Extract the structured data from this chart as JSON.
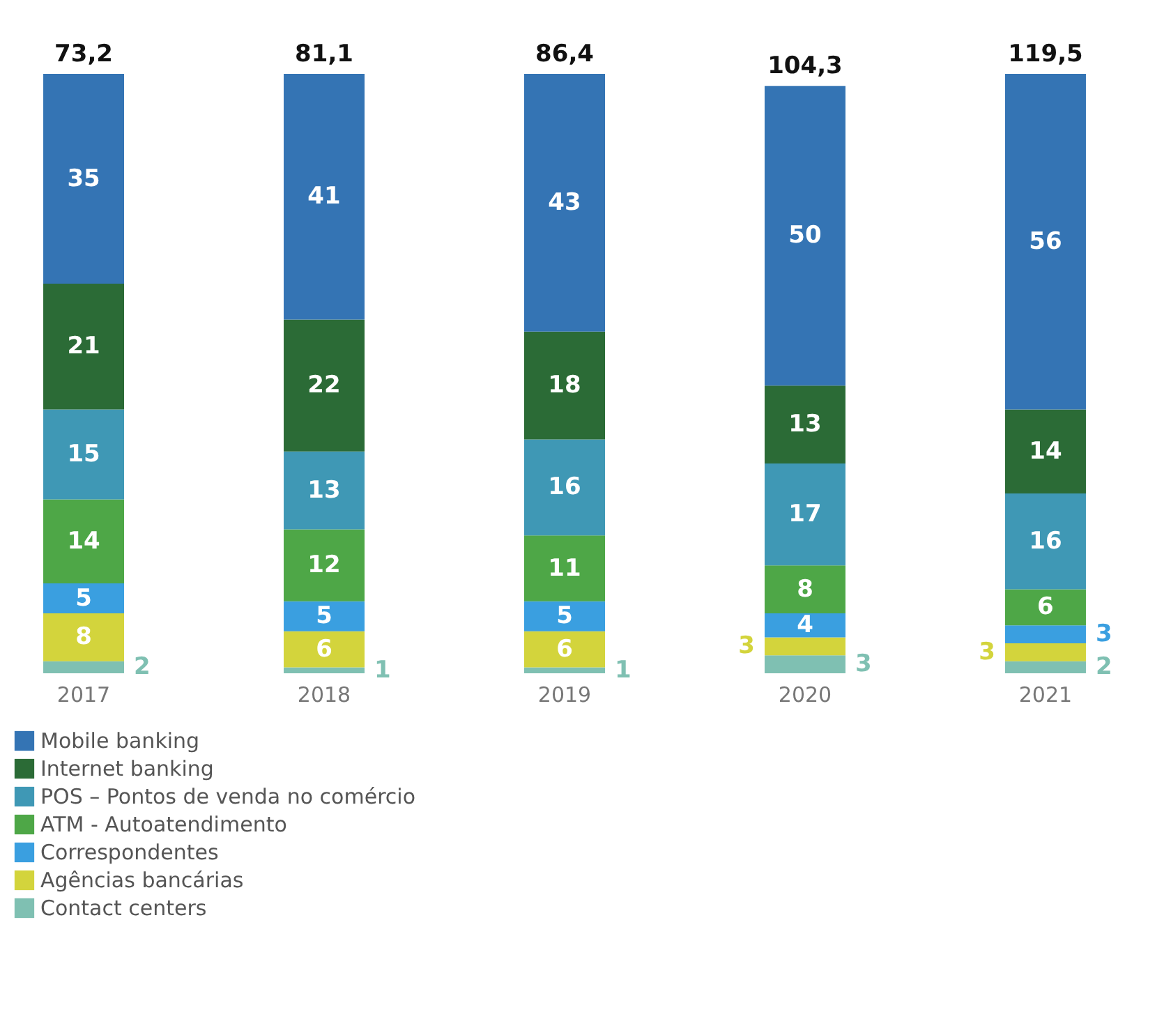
{
  "chart_data": {
    "type": "bar",
    "stacked": true,
    "categories": [
      "2017",
      "2018",
      "2019",
      "2020",
      "2021"
    ],
    "series": [
      {
        "name": "Contact centers",
        "color": "#7fc0b2",
        "values": [
          2,
          1,
          1,
          3,
          2
        ]
      },
      {
        "name": "Agências bancárias",
        "color": "#d3d43c",
        "values": [
          8,
          6,
          6,
          3,
          3
        ]
      },
      {
        "name": "Correspondentes",
        "color": "#3a9fe0",
        "values": [
          5,
          5,
          5,
          4,
          3
        ]
      },
      {
        "name": "ATM - Autoatendimento",
        "color": "#4ea747",
        "values": [
          14,
          12,
          11,
          8,
          6
        ]
      },
      {
        "name": "POS – Pontos de venda no comércio",
        "color": "#3f98b5",
        "values": [
          15,
          13,
          16,
          17,
          16
        ]
      },
      {
        "name": "Internet banking",
        "color": "#2b6b36",
        "values": [
          21,
          22,
          18,
          13,
          14
        ]
      },
      {
        "name": "Mobile banking",
        "color": "#3474b4",
        "values": [
          35,
          41,
          43,
          50,
          56
        ]
      }
    ],
    "annotations": [
      {
        "text": "73,2",
        "x": "2017",
        "y": 100
      },
      {
        "text": "81,1",
        "x": "2018",
        "y": 100
      },
      {
        "text": "86,4",
        "x": "2019",
        "y": 100
      },
      {
        "text": "104,3",
        "x": "2020",
        "y": 98
      },
      {
        "text": "119,5",
        "x": "2021",
        "y": 100
      }
    ],
    "data_labels": true,
    "legend": "bottom left",
    "grid": false
  }
}
